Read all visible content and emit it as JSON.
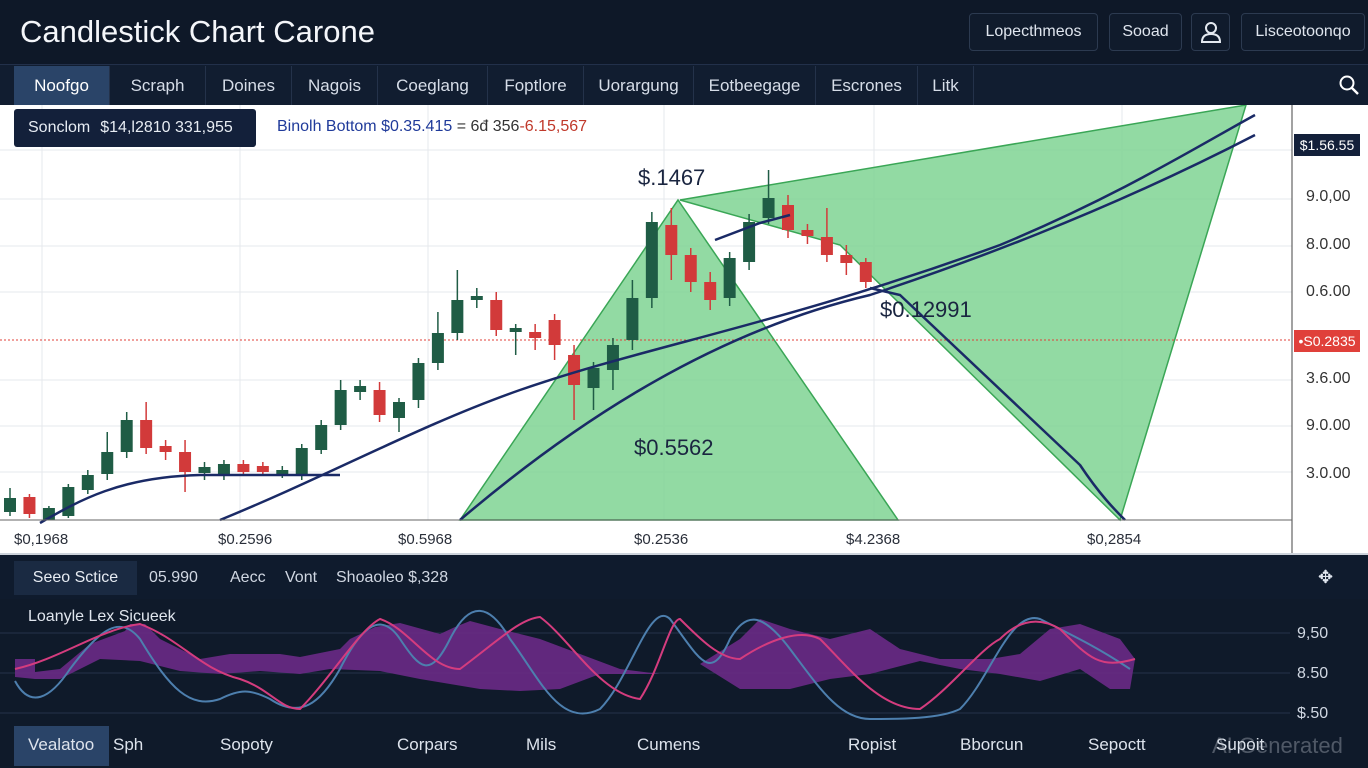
{
  "header": {
    "title": "Candlestick Chart Carone",
    "buttons": [
      "Lopecthmeos",
      "Sooad",
      "Lisceotoonqo"
    ],
    "user_icon": "user-icon"
  },
  "nav": {
    "tabs": [
      "Noofgo",
      "Scraph",
      "Doines",
      "Nagois",
      "Coeglang",
      "Foptlore",
      "Uorargung",
      "Eotbeegage",
      "Escrones",
      "Litk"
    ],
    "active": 0,
    "search_icon": "search-icon"
  },
  "info": {
    "label": "Sonclom",
    "value": "$14,l2810 331,955"
  },
  "legend": {
    "name": "Binolh Bottom",
    "value": "$0.35.415",
    "eq": "= 6đ 356",
    "delta": "-6.15,567"
  },
  "annotations": {
    "top": "$.1467",
    "mid": "$0.12991",
    "low": "$0.5562"
  },
  "y_axis": {
    "ticks": [
      "9.0,00",
      "8.0.00",
      "0.6.00",
      "3.6.00",
      "9.0.00",
      "3.0.00"
    ],
    "last_price": "$1.56.55",
    "marker_price": "•S0.2835"
  },
  "x_axis": {
    "ticks": [
      "$0,1968",
      "$0.2596",
      "$0.5968",
      "$0.2536",
      "$4.2368",
      "$0,2854"
    ]
  },
  "colors": {
    "up": "#1f5c45",
    "down": "#d23a3a",
    "fill": "#7fd493",
    "line": "#1a2a66",
    "marker": "#e0403a"
  },
  "chart_data": {
    "type": "candlestick",
    "ylim": [
      0,
      415
    ],
    "candles": [
      [
        8,
        22,
        32,
        4
      ],
      [
        23,
        6,
        26,
        2
      ],
      [
        0,
        12,
        14,
        0
      ],
      [
        4,
        33,
        36,
        2
      ],
      [
        30,
        45,
        50,
        26
      ],
      [
        46,
        68,
        88,
        40
      ],
      [
        68,
        100,
        108,
        62
      ],
      [
        100,
        72,
        118,
        66
      ],
      [
        74,
        68,
        80,
        60
      ],
      [
        68,
        48,
        80,
        28
      ],
      [
        47,
        53,
        58,
        40
      ],
      [
        46,
        56,
        60,
        40
      ],
      [
        56,
        48,
        60,
        44
      ],
      [
        54,
        48,
        58,
        44
      ],
      [
        46,
        50,
        54,
        42
      ],
      [
        46,
        72,
        76,
        40
      ],
      [
        70,
        95,
        100,
        66
      ],
      [
        95,
        130,
        140,
        90
      ],
      [
        128,
        134,
        140,
        120
      ],
      [
        130,
        105,
        138,
        98
      ],
      [
        102,
        118,
        122,
        88
      ],
      [
        120,
        157,
        162,
        112
      ],
      [
        157,
        187,
        208,
        150
      ],
      [
        187,
        220,
        250,
        180
      ],
      [
        220,
        224,
        232,
        212
      ],
      [
        220,
        190,
        228,
        184
      ],
      [
        188,
        192,
        196,
        165
      ],
      [
        188,
        182,
        196,
        170
      ],
      [
        200,
        175,
        206,
        160
      ],
      [
        165,
        135,
        175,
        100
      ],
      [
        132,
        152,
        158,
        110
      ],
      [
        150,
        175,
        182,
        130
      ],
      [
        180,
        222,
        240,
        170
      ],
      [
        222,
        298,
        308,
        212
      ],
      [
        295,
        265,
        312,
        240
      ],
      [
        265,
        238,
        272,
        228
      ],
      [
        238,
        220,
        248,
        210
      ],
      [
        222,
        262,
        268,
        214
      ],
      [
        258,
        298,
        306,
        250
      ],
      [
        302,
        322,
        350,
        296
      ],
      [
        315,
        290,
        325,
        282
      ],
      [
        290,
        284,
        296,
        276
      ],
      [
        283,
        265,
        312,
        258
      ],
      [
        265,
        257,
        275,
        245
      ],
      [
        258,
        238,
        262,
        232
      ]
    ]
  },
  "subbar": {
    "items": [
      "Seeo Sctice",
      "05.990",
      "Aecc",
      "Vont",
      "Shoaoleo $,328"
    ],
    "settings_icon": "crosshair-settings-icon"
  },
  "indicator": {
    "title": "Loanyle Lex Sicueek",
    "ticks": [
      "9,50",
      "8.50",
      "$.50"
    ]
  },
  "footer": {
    "items": [
      "Vealatoo",
      "Sph",
      "Sopoty",
      "Corpars",
      "Mils",
      "Cumens",
      "Ropist",
      "Bborcun",
      "Sepoctt",
      "Supoit"
    ],
    "watermark": "AI Generated"
  }
}
